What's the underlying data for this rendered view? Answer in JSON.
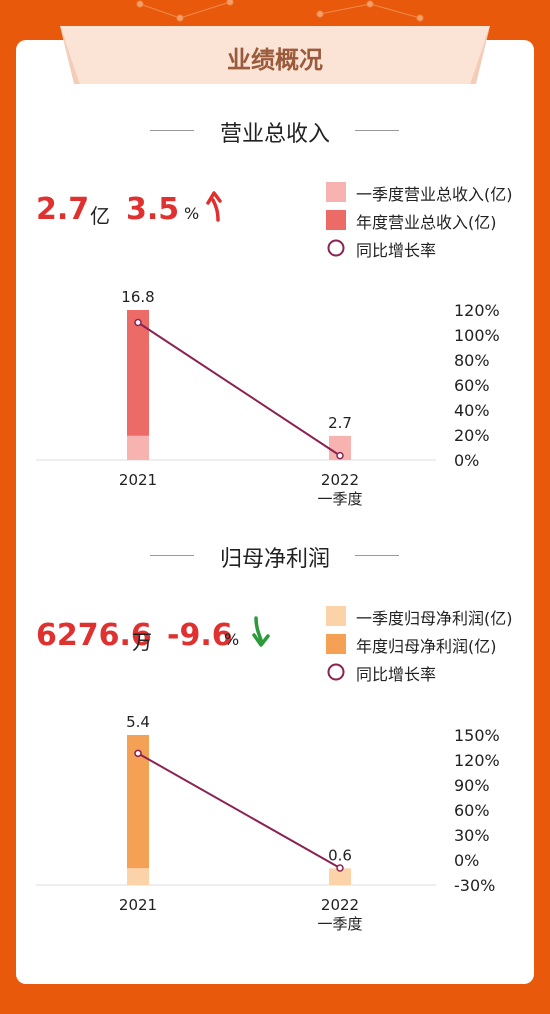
{
  "banner": {
    "title": "业绩概况"
  },
  "revenue": {
    "section_title": "营业总收入",
    "headline_value": "2.7",
    "headline_unit": "亿",
    "change_value": "3.5",
    "change_unit": "%",
    "change_direction": "up",
    "arrow_color": "#e03131",
    "legend": [
      "一季度营业总收入(亿)",
      "年度营业总收入(亿)",
      "同比增长率"
    ],
    "colors": {
      "quarter": "#f7b3b0",
      "annual": "#ec6b66",
      "line": "#8b2352"
    }
  },
  "profit": {
    "section_title": "归母净利润",
    "headline_value": "6276.6",
    "headline_unit": "万",
    "change_value": "-9.6",
    "change_unit": "%",
    "change_direction": "down",
    "arrow_color": "#2b9a3a",
    "legend": [
      "一季度归母净利润(亿)",
      "年度归母净利润(亿)",
      "同比增长率"
    ],
    "colors": {
      "quarter": "#fcd3a8",
      "annual": "#f4a055",
      "line": "#8b2352"
    }
  },
  "chart_data": [
    {
      "type": "bar",
      "categories": [
        "2021",
        "2022\n一季度"
      ],
      "series": [
        {
          "name": "一季度营业总收入(亿)",
          "values": [
            2.7,
            2.7
          ]
        },
        {
          "name": "年度营业总收入(亿)",
          "values": [
            16.8,
            null
          ]
        },
        {
          "name": "同比增长率",
          "type": "line",
          "values": [
            110,
            3.5
          ]
        }
      ],
      "data_labels": [
        "16.8",
        "2.7"
      ],
      "bar_ylim": [
        0,
        16.8
      ],
      "y2_ticks": [
        "120%",
        "100%",
        "80%",
        "60%",
        "40%",
        "20%",
        "0%"
      ],
      "y2lim": [
        0,
        120
      ]
    },
    {
      "type": "bar",
      "categories": [
        "2021",
        "2022\n一季度"
      ],
      "series": [
        {
          "name": "一季度归母净利润(亿)",
          "values": [
            0.6,
            0.6
          ]
        },
        {
          "name": "年度归母净利润(亿)",
          "values": [
            5.4,
            null
          ]
        },
        {
          "name": "同比增长率",
          "type": "line",
          "values": [
            128,
            -9.6
          ]
        }
      ],
      "data_labels": [
        "5.4",
        "0.6"
      ],
      "bar_ylim": [
        0,
        5.4
      ],
      "y2_ticks": [
        "150%",
        "120%",
        "90%",
        "60%",
        "30%",
        "0%",
        "-30%"
      ],
      "y2lim": [
        -30,
        150
      ]
    }
  ]
}
